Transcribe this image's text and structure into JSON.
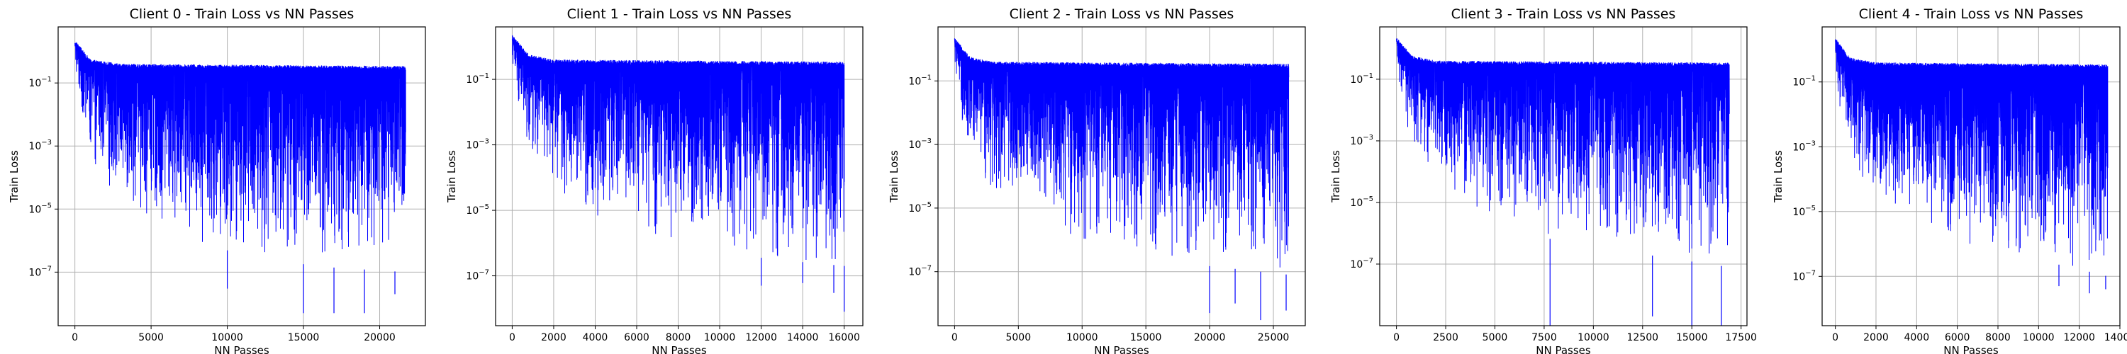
{
  "chart_data": [
    {
      "type": "line",
      "title": "Client 0 - Train Loss vs NN Passes",
      "xlabel": "NN Passes",
      "ylabel": "Train Loss",
      "xlim": [
        -1100,
        23000
      ],
      "ylim": [
        2e-09,
        6
      ],
      "y_scale": "log",
      "grid": true,
      "line_color": "#0000ff",
      "x_ticks": [
        0,
        5000,
        10000,
        15000,
        20000
      ],
      "x_tick_labels": [
        "0",
        "5000",
        "10000",
        "15000",
        "20000"
      ],
      "y_ticks": [
        1e-07,
        1e-05,
        0.001,
        0.1
      ],
      "y_tick_bases": [
        "10",
        "10",
        "10",
        "10"
      ],
      "y_tick_exps": [
        "−7",
        "−5",
        "−3",
        "−1"
      ],
      "series": [
        {
          "x_range": [
            0,
            21700
          ],
          "upper_envelope": [
            [
              0,
              2.0
            ],
            [
              1000,
              0.5
            ],
            [
              3000,
              0.35
            ],
            [
              21700,
              0.3
            ]
          ],
          "lower_envelope": [
            [
              0,
              0.3
            ],
            [
              300,
              0.02
            ],
            [
              1000,
              0.0003
            ],
            [
              2500,
              3e-05
            ],
            [
              5000,
              4e-06
            ],
            [
              8000,
              8e-07
            ],
            [
              12000,
              3e-07
            ],
            [
              16000,
              1.5e-07
            ],
            [
              21700,
              1e-07
            ]
          ],
          "min_spike_values": [
            [
              10000,
              3e-08
            ],
            [
              15000,
              5e-09
            ],
            [
              17000,
              5e-09
            ],
            [
              19000,
              5e-09
            ],
            [
              21000,
              2e-08
            ]
          ]
        }
      ]
    },
    {
      "type": "line",
      "title": "Client 1 - Train Loss vs NN Passes",
      "xlabel": "NN Passes",
      "ylabel": "Train Loss",
      "xlim": [
        -800,
        16900
      ],
      "ylim": [
        3e-09,
        4
      ],
      "y_scale": "log",
      "grid": true,
      "line_color": "#0000ff",
      "x_ticks": [
        0,
        2000,
        4000,
        6000,
        8000,
        10000,
        12000,
        14000,
        16000
      ],
      "x_tick_labels": [
        "0",
        "2000",
        "4000",
        "6000",
        "8000",
        "10000",
        "12000",
        "14000",
        "16000"
      ],
      "y_ticks": [
        1e-07,
        1e-05,
        0.001,
        0.1
      ],
      "y_tick_bases": [
        "10",
        "10",
        "10",
        "10"
      ],
      "y_tick_exps": [
        "−7",
        "−5",
        "−3",
        "−1"
      ],
      "series": [
        {
          "x_range": [
            0,
            16000
          ],
          "upper_envelope": [
            [
              0,
              2.0
            ],
            [
              800,
              0.5
            ],
            [
              2000,
              0.35
            ],
            [
              16000,
              0.3
            ]
          ],
          "lower_envelope": [
            [
              0,
              0.3
            ],
            [
              200,
              0.02
            ],
            [
              800,
              0.0003
            ],
            [
              2000,
              4e-05
            ],
            [
              4000,
              6e-06
            ],
            [
              7000,
              1e-06
            ],
            [
              10000,
              5e-07
            ],
            [
              13000,
              3e-07
            ],
            [
              16000,
              2e-07
            ]
          ],
          "min_spike_values": [
            [
              12000,
              5e-08
            ],
            [
              14000,
              6e-08
            ],
            [
              15500,
              3e-08
            ],
            [
              16000,
              8e-09
            ]
          ]
        }
      ]
    },
    {
      "type": "line",
      "title": "Client 2 - Train Loss vs NN Passes",
      "xlabel": "NN Passes",
      "ylabel": "Train Loss",
      "xlim": [
        -1300,
        27500
      ],
      "ylim": [
        2e-09,
        5
      ],
      "y_scale": "log",
      "grid": true,
      "line_color": "#0000ff",
      "x_ticks": [
        0,
        5000,
        10000,
        15000,
        20000,
        25000
      ],
      "x_tick_labels": [
        "0",
        "5000",
        "10000",
        "15000",
        "20000",
        "25000"
      ],
      "y_ticks": [
        1e-07,
        1e-05,
        0.001,
        0.1
      ],
      "y_tick_bases": [
        "10",
        "10",
        "10",
        "10"
      ],
      "y_tick_exps": [
        "−7",
        "−5",
        "−3",
        "−1"
      ],
      "series": [
        {
          "x_range": [
            0,
            26200
          ],
          "upper_envelope": [
            [
              0,
              2.0
            ],
            [
              1200,
              0.5
            ],
            [
              3000,
              0.35
            ],
            [
              26200,
              0.3
            ]
          ],
          "lower_envelope": [
            [
              0,
              0.3
            ],
            [
              300,
              0.02
            ],
            [
              1200,
              0.0003
            ],
            [
              3000,
              3e-05
            ],
            [
              6000,
              4e-06
            ],
            [
              10000,
              8e-07
            ],
            [
              15000,
              3e-07
            ],
            [
              20000,
              1.5e-07
            ],
            [
              26200,
              8e-08
            ]
          ],
          "min_spike_values": [
            [
              20000,
              5e-09
            ],
            [
              22000,
              1e-08
            ],
            [
              24000,
              3e-09
            ],
            [
              26000,
              6e-09
            ]
          ]
        }
      ]
    },
    {
      "type": "line",
      "title": "Client 3 - Train Loss vs NN Passes",
      "xlabel": "NN Passes",
      "ylabel": "Train Loss",
      "xlim": [
        -850,
        17800
      ],
      "ylim": [
        1e-09,
        5
      ],
      "y_scale": "log",
      "grid": true,
      "line_color": "#0000ff",
      "x_ticks": [
        0,
        2500,
        5000,
        7500,
        10000,
        12500,
        15000,
        17500
      ],
      "x_tick_labels": [
        "0",
        "2500",
        "5000",
        "7500",
        "10000",
        "12500",
        "15000",
        "17500"
      ],
      "y_ticks": [
        1e-07,
        1e-05,
        0.001,
        0.1
      ],
      "y_tick_bases": [
        "10",
        "10",
        "10",
        "10"
      ],
      "y_tick_exps": [
        "−7",
        "−5",
        "−3",
        "−1"
      ],
      "series": [
        {
          "x_range": [
            0,
            16900
          ],
          "upper_envelope": [
            [
              0,
              2.0
            ],
            [
              800,
              0.5
            ],
            [
              2000,
              0.35
            ],
            [
              16900,
              0.3
            ]
          ],
          "lower_envelope": [
            [
              0,
              0.3
            ],
            [
              200,
              0.02
            ],
            [
              800,
              0.0003
            ],
            [
              2000,
              3e-05
            ],
            [
              4000,
              4e-06
            ],
            [
              7000,
              8e-07
            ],
            [
              11000,
              3e-07
            ],
            [
              14000,
              1.5e-07
            ],
            [
              16900,
              8e-08
            ]
          ],
          "min_spike_values": [
            [
              7800,
              1e-09
            ],
            [
              13000,
              2e-09
            ],
            [
              15000,
              1e-09
            ],
            [
              16500,
              1e-09
            ]
          ]
        }
      ]
    },
    {
      "type": "line",
      "title": "Client 4 - Train Loss vs NN Passes",
      "xlabel": "NN Passes",
      "ylabel": "Train Loss",
      "xlim": [
        -650,
        14000
      ],
      "ylim": [
        3e-09,
        5
      ],
      "y_scale": "log",
      "grid": true,
      "line_color": "#0000ff",
      "x_ticks": [
        0,
        2000,
        4000,
        6000,
        8000,
        10000,
        12000,
        14000
      ],
      "x_tick_labels": [
        "0",
        "2000",
        "4000",
        "6000",
        "8000",
        "10000",
        "12000",
        "14000"
      ],
      "y_ticks": [
        1e-07,
        1e-05,
        0.001,
        0.1
      ],
      "y_tick_bases": [
        "10",
        "10",
        "10",
        "10"
      ],
      "y_tick_exps": [
        "−7",
        "−5",
        "−3",
        "−1"
      ],
      "series": [
        {
          "x_range": [
            0,
            13400
          ],
          "upper_envelope": [
            [
              0,
              2.0
            ],
            [
              700,
              0.5
            ],
            [
              2000,
              0.35
            ],
            [
              13400,
              0.3
            ]
          ],
          "lower_envelope": [
            [
              0,
              0.3
            ],
            [
              150,
              0.02
            ],
            [
              700,
              0.0003
            ],
            [
              2000,
              3e-05
            ],
            [
              4000,
              4e-06
            ],
            [
              6500,
              8e-07
            ],
            [
              9000,
              4e-07
            ],
            [
              11500,
              2e-07
            ],
            [
              13400,
              1e-07
            ]
          ],
          "min_spike_values": [
            [
              11000,
              5e-08
            ],
            [
              12500,
              3e-08
            ],
            [
              13300,
              4e-08
            ]
          ]
        }
      ]
    }
  ]
}
